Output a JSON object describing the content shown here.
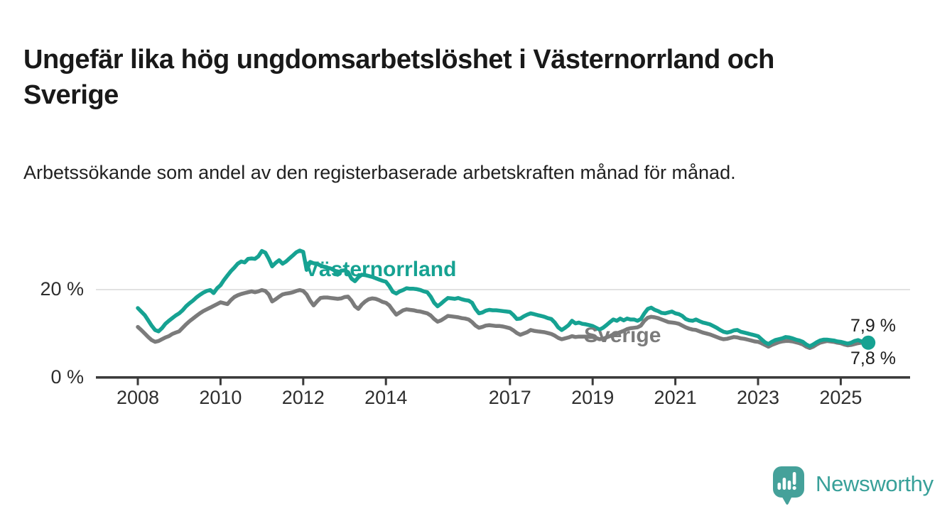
{
  "title": "Ungefär lika hög ungdomsarbetslöshet i Västernorrland och Sverige",
  "subtitle": "Arbetssökande som andel av den registerbaserade arbetskraften månad för månad.",
  "branding": {
    "logo_text": "Newsworthy",
    "logo_icon": "newsworthy-speech-bubble-bar-chart-icon",
    "logo_color": "#45a19a",
    "logo_text_color": "#38a099"
  },
  "chart_data": {
    "type": "line",
    "unit": "%",
    "frequency": "monthly",
    "start_month": "2008-01",
    "end_month": "2025-09",
    "grid": "single horizontal gridline at 20 %",
    "legend_position": "inline labels next to lines",
    "x_ticks": [
      {
        "label": "2008",
        "year": 2008
      },
      {
        "label": "2010",
        "year": 2010
      },
      {
        "label": "2012",
        "year": 2012
      },
      {
        "label": "2014",
        "year": 2014
      },
      {
        "label": "2017",
        "year": 2017
      },
      {
        "label": "2019",
        "year": 2019
      },
      {
        "label": "2021",
        "year": 2021
      },
      {
        "label": "2023",
        "year": 2023
      },
      {
        "label": "2025",
        "year": 2025
      }
    ],
    "y_ticks": [
      {
        "label": "0 %",
        "value": 0
      },
      {
        "label": "20 %",
        "value": 20
      }
    ],
    "ylim": [
      0,
      32.5
    ],
    "axis_color": "#3a3a3a",
    "gridline_color": "#d8d8d8",
    "series": [
      {
        "name": "Sverige",
        "color": "#7b7b7b",
        "end_label": "7,8 %",
        "end_dot": false,
        "values": [
          11.5,
          10.8,
          10.0,
          9.2,
          8.5,
          8.1,
          8.3,
          8.7,
          9.1,
          9.4,
          9.9,
          10.2,
          10.5,
          11.3,
          12.1,
          12.8,
          13.4,
          14.0,
          14.6,
          15.1,
          15.5,
          15.9,
          16.3,
          16.7,
          17.1,
          16.9,
          16.7,
          17.6,
          18.3,
          18.7,
          19.0,
          19.2,
          19.4,
          19.6,
          19.4,
          19.6,
          19.9,
          19.7,
          18.9,
          17.3,
          17.8,
          18.4,
          18.9,
          19.1,
          19.2,
          19.4,
          19.7,
          19.9,
          19.7,
          18.9,
          17.5,
          16.4,
          17.3,
          18.1,
          18.2,
          18.2,
          18.1,
          18.0,
          17.9,
          18.0,
          18.3,
          18.4,
          17.5,
          16.2,
          15.6,
          16.6,
          17.3,
          17.8,
          18.0,
          17.9,
          17.6,
          17.2,
          17.0,
          16.4,
          15.3,
          14.3,
          14.8,
          15.3,
          15.5,
          15.4,
          15.3,
          15.1,
          15.0,
          14.8,
          14.6,
          14.1,
          13.3,
          12.7,
          13.0,
          13.5,
          14.0,
          13.9,
          13.8,
          13.7,
          13.5,
          13.4,
          13.2,
          12.6,
          11.8,
          11.3,
          11.5,
          11.8,
          11.9,
          11.8,
          11.7,
          11.7,
          11.6,
          11.4,
          11.2,
          10.7,
          10.1,
          9.7,
          10.0,
          10.3,
          10.8,
          10.6,
          10.5,
          10.4,
          10.3,
          10.1,
          9.9,
          9.5,
          9.0,
          8.7,
          8.9,
          9.1,
          9.4,
          9.2,
          9.3,
          9.3,
          9.3,
          9.2,
          9.2,
          9.0,
          8.7,
          8.8,
          9.1,
          9.4,
          9.8,
          10.0,
          10.3,
          10.6,
          11.0,
          11.2,
          11.3,
          11.4,
          11.8,
          12.9,
          13.6,
          13.8,
          13.7,
          13.5,
          13.2,
          12.9,
          12.6,
          12.5,
          12.4,
          12.2,
          11.8,
          11.4,
          11.1,
          10.9,
          10.8,
          10.5,
          10.2,
          10.0,
          9.8,
          9.5,
          9.2,
          8.9,
          8.7,
          8.8,
          9.0,
          9.2,
          9.1,
          8.9,
          8.8,
          8.6,
          8.4,
          8.2,
          8.1,
          7.8,
          7.4,
          7.0,
          7.4,
          7.7,
          8.0,
          8.2,
          8.3,
          8.3,
          8.2,
          8.0,
          7.8,
          7.5,
          7.0,
          6.7,
          7.0,
          7.5,
          7.9,
          8.1,
          8.3,
          8.2,
          8.1,
          7.9,
          7.8,
          7.5,
          7.3,
          7.4,
          7.6,
          7.8,
          7.9,
          7.8,
          7.8
        ]
      },
      {
        "name": "Västernorrland",
        "color": "#16a292",
        "end_label": "7,9 %",
        "end_dot": true,
        "values": [
          15.8,
          15.0,
          14.2,
          13.0,
          11.8,
          10.8,
          10.5,
          11.2,
          12.2,
          12.9,
          13.5,
          14.1,
          14.6,
          15.3,
          16.2,
          16.9,
          17.5,
          18.2,
          18.8,
          19.3,
          19.7,
          19.9,
          19.2,
          20.3,
          21.0,
          22.2,
          23.2,
          24.2,
          25.0,
          25.9,
          26.4,
          26.2,
          27.0,
          27.1,
          27.0,
          27.6,
          28.8,
          28.4,
          27.0,
          25.3,
          26.1,
          26.7,
          25.9,
          26.4,
          27.1,
          27.8,
          28.5,
          28.9,
          28.6,
          24.5,
          26.3,
          26.0,
          25.9,
          25.5,
          25.2,
          25.0,
          24.8,
          24.4,
          23.4,
          24.3,
          24.4,
          24.0,
          22.5,
          21.9,
          22.8,
          23.4,
          23.3,
          23.1,
          22.9,
          22.6,
          22.3,
          22.0,
          21.8,
          20.8,
          19.5,
          19.1,
          19.6,
          19.9,
          20.3,
          20.2,
          20.2,
          20.1,
          19.9,
          19.6,
          19.4,
          18.4,
          17.0,
          16.2,
          16.8,
          17.5,
          18.1,
          18.0,
          17.9,
          18.1,
          17.8,
          17.6,
          17.5,
          17.0,
          15.6,
          14.6,
          14.8,
          15.2,
          15.4,
          15.3,
          15.3,
          15.2,
          15.1,
          15.0,
          14.9,
          14.2,
          13.3,
          13.4,
          13.9,
          14.3,
          14.6,
          14.4,
          14.2,
          14.0,
          13.8,
          13.5,
          13.3,
          12.5,
          11.4,
          10.8,
          11.3,
          11.9,
          12.9,
          12.3,
          12.5,
          12.2,
          12.1,
          11.9,
          11.7,
          11.3,
          10.9,
          11.3,
          11.9,
          12.6,
          13.2,
          12.9,
          13.4,
          13.0,
          13.4,
          13.2,
          13.2,
          12.9,
          13.3,
          14.6,
          15.6,
          15.9,
          15.4,
          15.1,
          14.7,
          14.6,
          14.8,
          15.0,
          14.6,
          14.4,
          14.0,
          13.3,
          13.0,
          12.9,
          13.2,
          12.8,
          12.5,
          12.3,
          12.1,
          11.7,
          11.3,
          10.8,
          10.4,
          10.2,
          10.4,
          10.7,
          10.8,
          10.4,
          10.2,
          10.0,
          9.8,
          9.6,
          9.4,
          8.7,
          8.0,
          7.6,
          8.1,
          8.5,
          8.7,
          8.9,
          9.2,
          9.1,
          8.9,
          8.6,
          8.4,
          8.1,
          7.5,
          7.1,
          7.5,
          8.0,
          8.4,
          8.6,
          8.6,
          8.5,
          8.4,
          8.2,
          8.1,
          7.9,
          7.7,
          7.9,
          8.3,
          8.5,
          8.2,
          8.3,
          7.9
        ]
      }
    ]
  }
}
